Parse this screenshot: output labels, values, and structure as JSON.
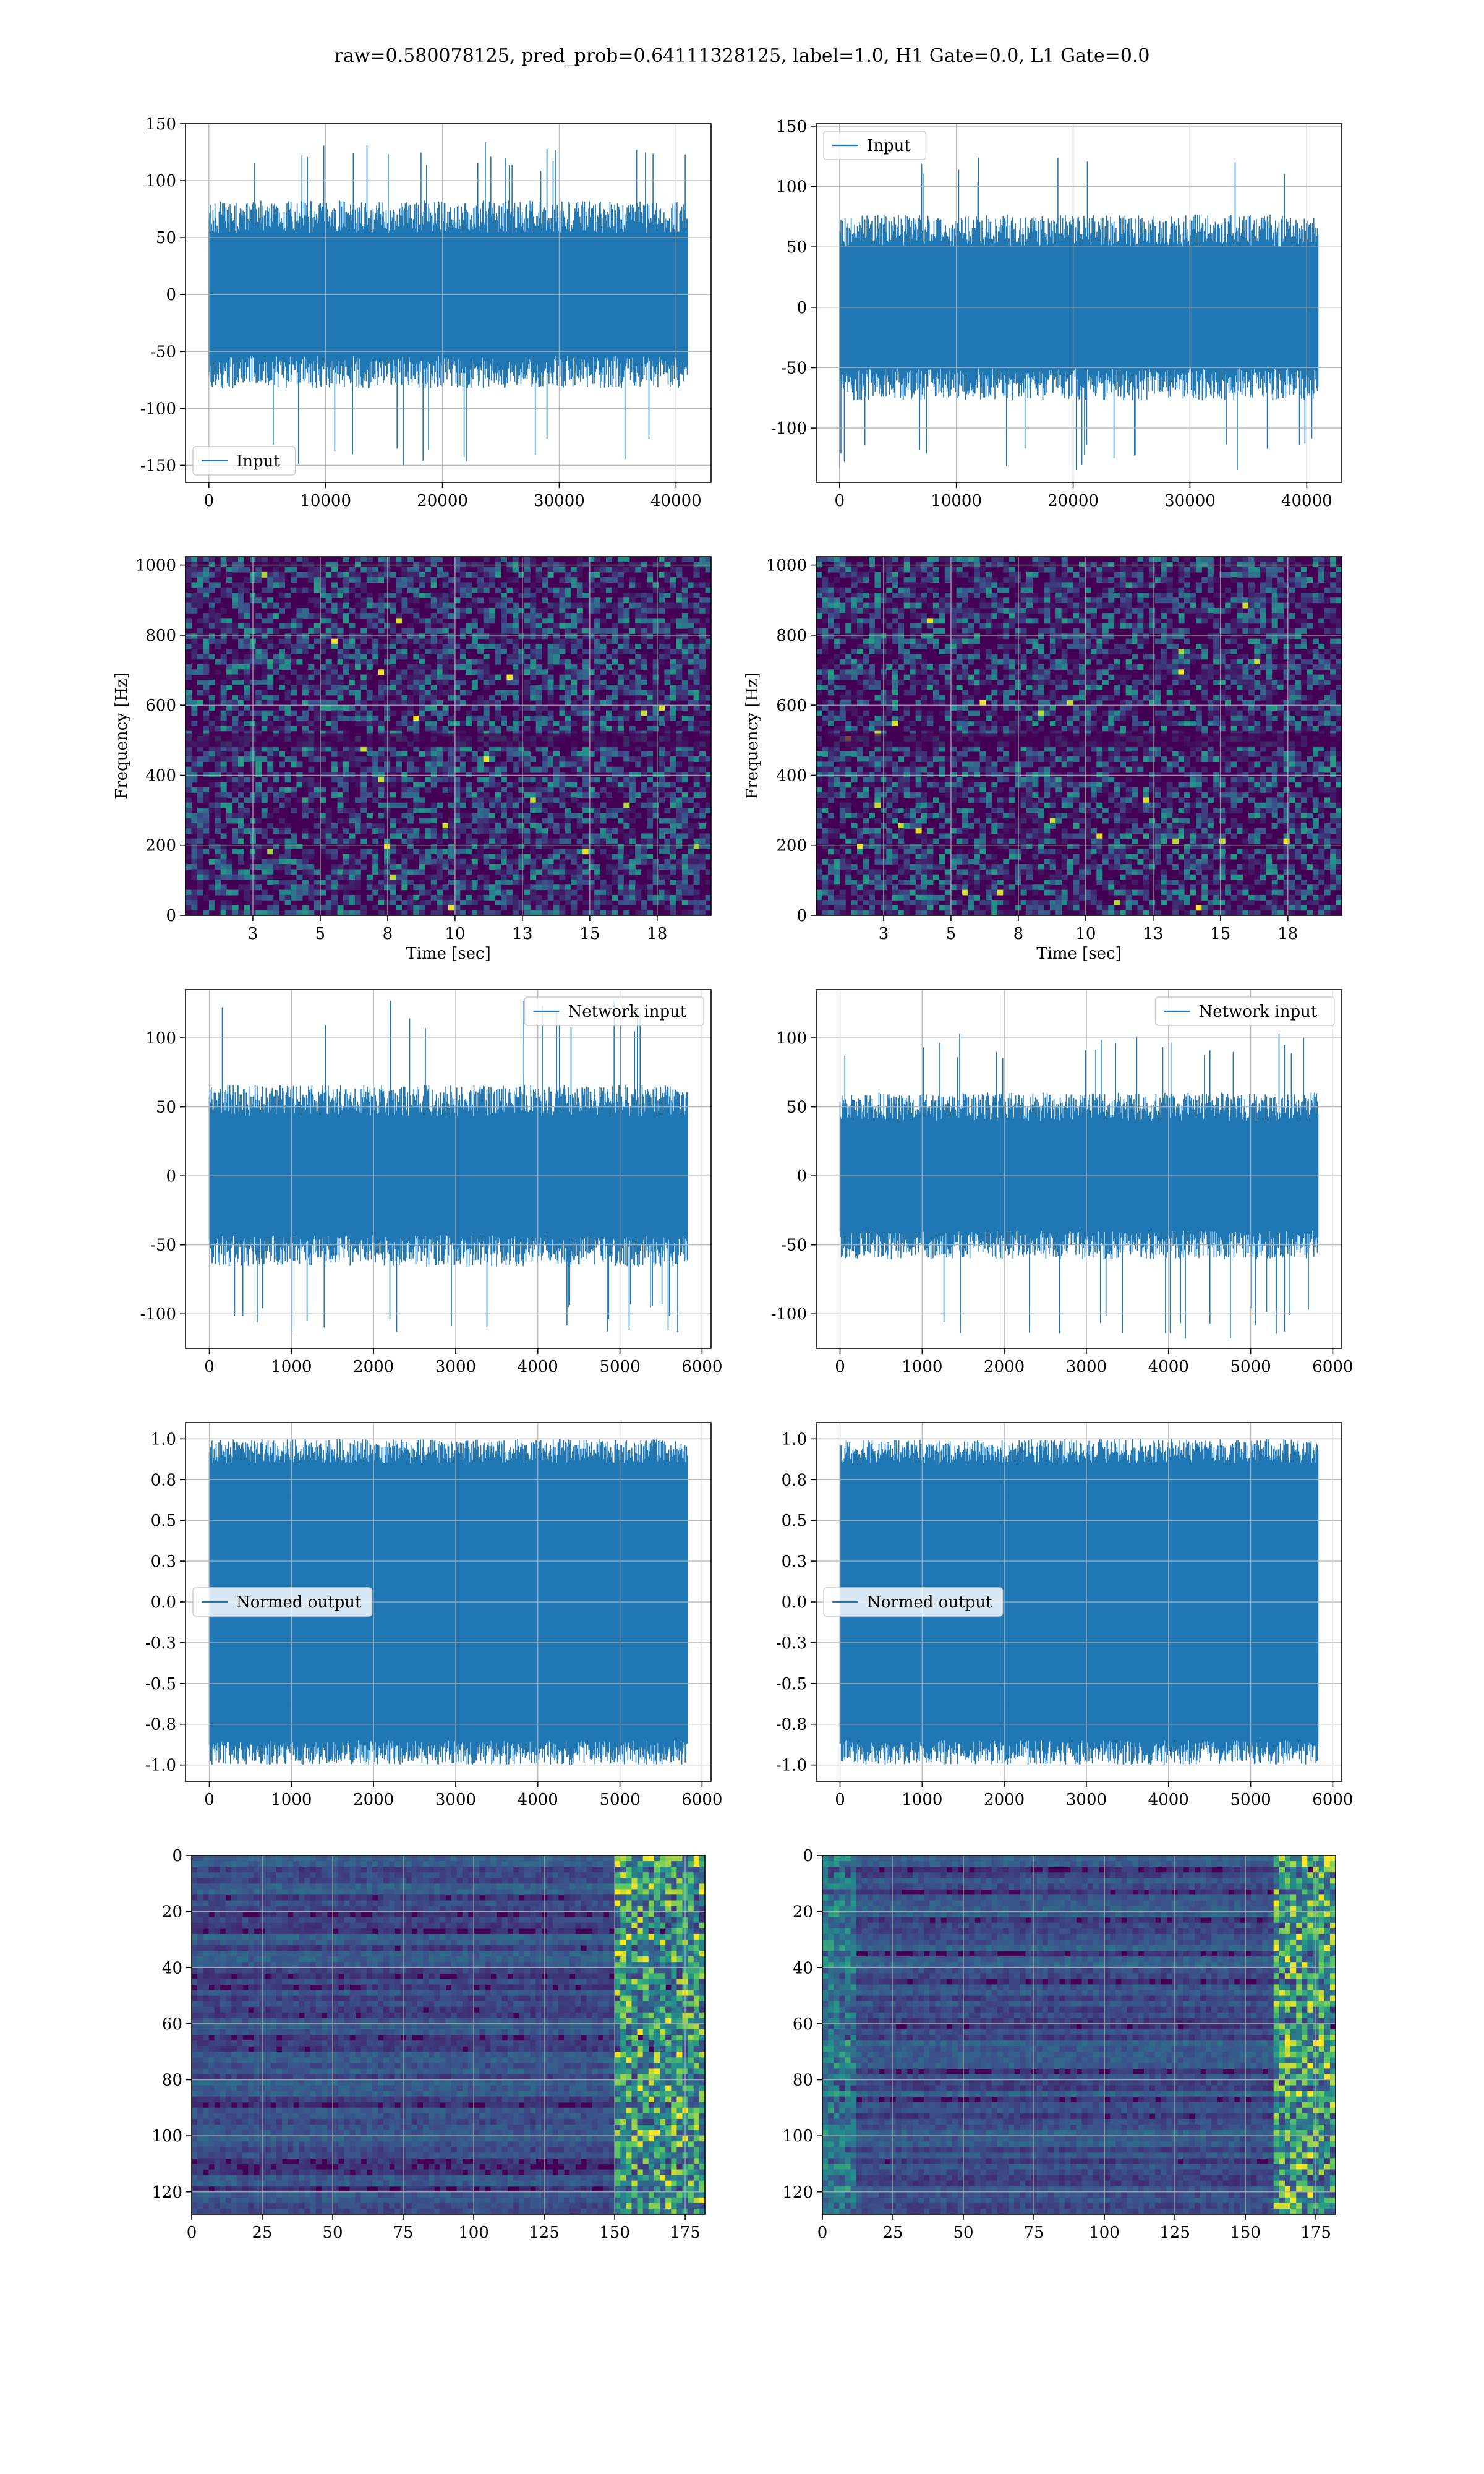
{
  "figure_title": "raw=0.580078125, pred_prob=0.64111328125, label=1.0, H1 Gate=0.0, L1 Gate=0.0",
  "colors": {
    "series": "#1f77b4",
    "grid": "#b0b0b0",
    "viridis_dark": "#440154",
    "viridis_mid": "#31688e",
    "viridis_green": "#35b779",
    "viridis_yellow": "#fde725"
  },
  "chart_data": [
    {
      "id": "input-h1",
      "type": "line",
      "title": "",
      "xlabel": "",
      "ylabel": "",
      "xlim": [
        -2000,
        43000
      ],
      "ylim": [
        -165,
        150
      ],
      "xticks": [
        0,
        10000,
        20000,
        30000,
        40000
      ],
      "yticks": [
        -150,
        -100,
        -50,
        0,
        50,
        100,
        150
      ],
      "series": [
        {
          "name": "Input",
          "x_range": [
            0,
            40960
          ],
          "envelope_typical": [
            -75,
            75
          ],
          "y_min": -157,
          "y_max": 135
        }
      ],
      "legend": "lower-left",
      "grid": true
    },
    {
      "id": "input-l1",
      "type": "line",
      "title": "",
      "xlabel": "",
      "ylabel": "",
      "xlim": [
        -2000,
        43000
      ],
      "ylim": [
        -145,
        152
      ],
      "xticks": [
        0,
        10000,
        20000,
        30000,
        40000
      ],
      "yticks": [
        -100,
        -50,
        0,
        50,
        100,
        150
      ],
      "series": [
        {
          "name": "Input",
          "x_range": [
            0,
            40960
          ],
          "envelope_typical": [
            -70,
            70
          ],
          "y_min": -135,
          "y_max": 125
        }
      ],
      "legend": "upper-left",
      "grid": true
    },
    {
      "id": "spectrogram-h1",
      "type": "heatmap",
      "title": "",
      "xlabel": "Time [sec]",
      "ylabel": "Frequency [Hz]",
      "xlim": [
        0,
        19.5
      ],
      "ylim": [
        0,
        1024
      ],
      "xticks": [
        2.5,
        5.0,
        7.5,
        10.0,
        12.5,
        15.0,
        17.5
      ],
      "yticks": [
        0,
        200,
        400,
        600,
        800,
        1000
      ],
      "colormap": "viridis",
      "grid": true
    },
    {
      "id": "spectrogram-l1",
      "type": "heatmap",
      "title": "",
      "xlabel": "Time [sec]",
      "ylabel": "Frequency [Hz]",
      "xlim": [
        0,
        19.5
      ],
      "ylim": [
        0,
        1024
      ],
      "xticks": [
        2.5,
        5.0,
        7.5,
        10.0,
        12.5,
        15.0,
        17.5
      ],
      "yticks": [
        0,
        200,
        400,
        600,
        800,
        1000
      ],
      "colormap": "viridis",
      "grid": true
    },
    {
      "id": "network-input-h1",
      "type": "line",
      "title": "",
      "xlabel": "",
      "ylabel": "",
      "xlim": [
        -290,
        6110
      ],
      "ylim": [
        -125,
        135
      ],
      "xticks": [
        0,
        1000,
        2000,
        3000,
        4000,
        5000,
        6000
      ],
      "yticks": [
        -100,
        -50,
        0,
        50,
        100
      ],
      "series": [
        {
          "name": "Network input",
          "x_range": [
            0,
            5820
          ],
          "envelope_typical": [
            -60,
            60
          ],
          "y_min": -115,
          "y_max": 128
        }
      ],
      "legend": "upper-right",
      "grid": true
    },
    {
      "id": "network-input-l1",
      "type": "line",
      "title": "",
      "xlabel": "",
      "ylabel": "",
      "xlim": [
        -290,
        6110
      ],
      "ylim": [
        -125,
        135
      ],
      "xticks": [
        0,
        1000,
        2000,
        3000,
        4000,
        5000,
        6000
      ],
      "yticks": [
        -100,
        -50,
        0,
        50,
        100
      ],
      "series": [
        {
          "name": "Network input",
          "x_range": [
            0,
            5820
          ],
          "envelope_typical": [
            -55,
            55
          ],
          "y_min": -118,
          "y_max": 104
        }
      ],
      "legend": "upper-right",
      "grid": true
    },
    {
      "id": "normed-output-h1",
      "type": "line",
      "title": "",
      "xlabel": "",
      "ylabel": "",
      "xlim": [
        -290,
        6110
      ],
      "ylim": [
        -1.1,
        1.1
      ],
      "xticks": [
        0,
        1000,
        2000,
        3000,
        4000,
        5000,
        6000
      ],
      "yticks": [
        -1.0,
        -0.75,
        -0.5,
        -0.25,
        0.0,
        0.25,
        0.5,
        0.75,
        1.0
      ],
      "series": [
        {
          "name": "Normed output",
          "x_range": [
            0,
            5820
          ],
          "envelope_typical": [
            -0.9,
            0.9
          ],
          "y_min": -1.0,
          "y_max": 1.0
        }
      ],
      "legend": "center-left",
      "grid": true
    },
    {
      "id": "normed-output-l1",
      "type": "line",
      "title": "",
      "xlabel": "",
      "ylabel": "",
      "xlim": [
        -290,
        6110
      ],
      "ylim": [
        -1.1,
        1.1
      ],
      "xticks": [
        0,
        1000,
        2000,
        3000,
        4000,
        5000,
        6000
      ],
      "yticks": [
        -1.0,
        -0.75,
        -0.5,
        -0.25,
        0.0,
        0.25,
        0.5,
        0.75,
        1.0
      ],
      "series": [
        {
          "name": "Normed output",
          "x_range": [
            0,
            5820
          ],
          "envelope_typical": [
            -0.9,
            0.9
          ],
          "y_min": -1.0,
          "y_max": 1.0
        }
      ],
      "legend": "center-left",
      "grid": true
    },
    {
      "id": "feature-map-h1",
      "type": "heatmap",
      "title": "",
      "xlabel": "",
      "ylabel": "",
      "xlim": [
        0,
        182
      ],
      "ylim": [
        128,
        0
      ],
      "xticks": [
        0,
        25,
        50,
        75,
        100,
        125,
        150,
        175
      ],
      "yticks": [
        0,
        20,
        40,
        60,
        80,
        100,
        120
      ],
      "colormap": "viridis",
      "bright_columns_from": 150,
      "grid": true
    },
    {
      "id": "feature-map-l1",
      "type": "heatmap",
      "title": "",
      "xlabel": "",
      "ylabel": "",
      "xlim": [
        0,
        182
      ],
      "ylim": [
        128,
        0
      ],
      "xticks": [
        0,
        25,
        50,
        75,
        100,
        125,
        150,
        175
      ],
      "yticks": [
        0,
        20,
        40,
        60,
        80,
        100,
        120
      ],
      "colormap": "viridis",
      "bright_columns_from": 160,
      "grid": true
    }
  ]
}
